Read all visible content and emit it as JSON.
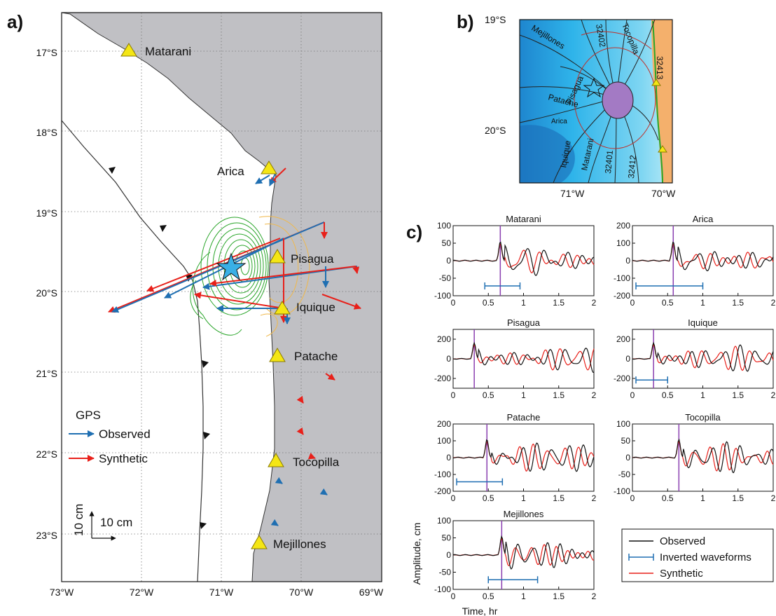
{
  "panel_a": {
    "label": "a)",
    "lat_labels": [
      "17°S",
      "18°S",
      "19°S",
      "20°S",
      "21°S",
      "22°S",
      "23°S"
    ],
    "lon_labels": [
      "73°W",
      "72°W",
      "71°W",
      "70°W",
      "69°W"
    ],
    "stations": [
      "Matarani",
      "Arica",
      "Pisagua",
      "Iquique",
      "Patache",
      "Tocopilla",
      "Mejillones"
    ],
    "legend": {
      "title": "GPS",
      "observed": "Observed",
      "synthetic": "Synthetic"
    },
    "scale": {
      "vertical": "10 cm",
      "horizontal": "10 cm"
    },
    "colors": {
      "observed": "#1f6fb2",
      "synthetic": "#e8201a",
      "slip_contour": "#2aa52a",
      "uplift_contour": "#f0b84a",
      "land": "#c0c0c4"
    }
  },
  "panel_b": {
    "label": "b)",
    "lat_labels": [
      "19°S",
      "20°S"
    ],
    "lon_labels": [
      "71°W",
      "70°W"
    ],
    "ray_labels": [
      "Mejillones",
      "32402",
      "Tocopilla",
      "32413",
      "Pisagua",
      "Patache",
      "Arica",
      "Iquique",
      "Matarani",
      "32401",
      "32412"
    ]
  },
  "panel_c": {
    "label": "c)",
    "x_label": "Time, hr",
    "y_label": "Amplitude, cm",
    "legend": {
      "observed": "Observed",
      "inverted": "Inverted waveforms",
      "synthetic": "Synthetic"
    },
    "chart_data": [
      {
        "type": "line",
        "title": "Matarani",
        "xlim": [
          0,
          2
        ],
        "ylim": [
          -100,
          100
        ],
        "yticks": [
          -100,
          -50,
          0,
          50,
          100
        ],
        "arrival": 0.67,
        "window": [
          0.45,
          0.95
        ]
      },
      {
        "type": "line",
        "title": "Arica",
        "xlim": [
          0,
          2
        ],
        "ylim": [
          -200,
          200
        ],
        "yticks": [
          -200,
          -100,
          0,
          100,
          200
        ],
        "arrival": 0.58,
        "window": [
          0.05,
          1.0
        ]
      },
      {
        "type": "line",
        "title": "Pisagua",
        "xlim": [
          0,
          2
        ],
        "ylim": [
          -300,
          300
        ],
        "yticks": [
          -200,
          0,
          200
        ],
        "arrival": 0.3,
        "window": null
      },
      {
        "type": "line",
        "title": "Iquique",
        "xlim": [
          0,
          2
        ],
        "ylim": [
          -300,
          300
        ],
        "yticks": [
          -200,
          0,
          200
        ],
        "arrival": 0.3,
        "window": [
          0.05,
          0.5
        ]
      },
      {
        "type": "line",
        "title": "Patache",
        "xlim": [
          0,
          2
        ],
        "ylim": [
          -200,
          200
        ],
        "yticks": [
          -200,
          -100,
          0,
          100,
          200
        ],
        "arrival": 0.48,
        "window": [
          0.05,
          0.7
        ]
      },
      {
        "type": "line",
        "title": "Tocopilla",
        "xlim": [
          0,
          2
        ],
        "ylim": [
          -100,
          100
        ],
        "yticks": [
          -100,
          -50,
          0,
          50,
          100
        ],
        "arrival": 0.66,
        "window": null
      },
      {
        "type": "line",
        "title": "Mejillones",
        "xlim": [
          0,
          2
        ],
        "ylim": [
          -100,
          100
        ],
        "yticks": [
          -100,
          -50,
          0,
          50,
          100
        ],
        "arrival": 0.69,
        "window": [
          0.5,
          1.2
        ]
      }
    ]
  }
}
